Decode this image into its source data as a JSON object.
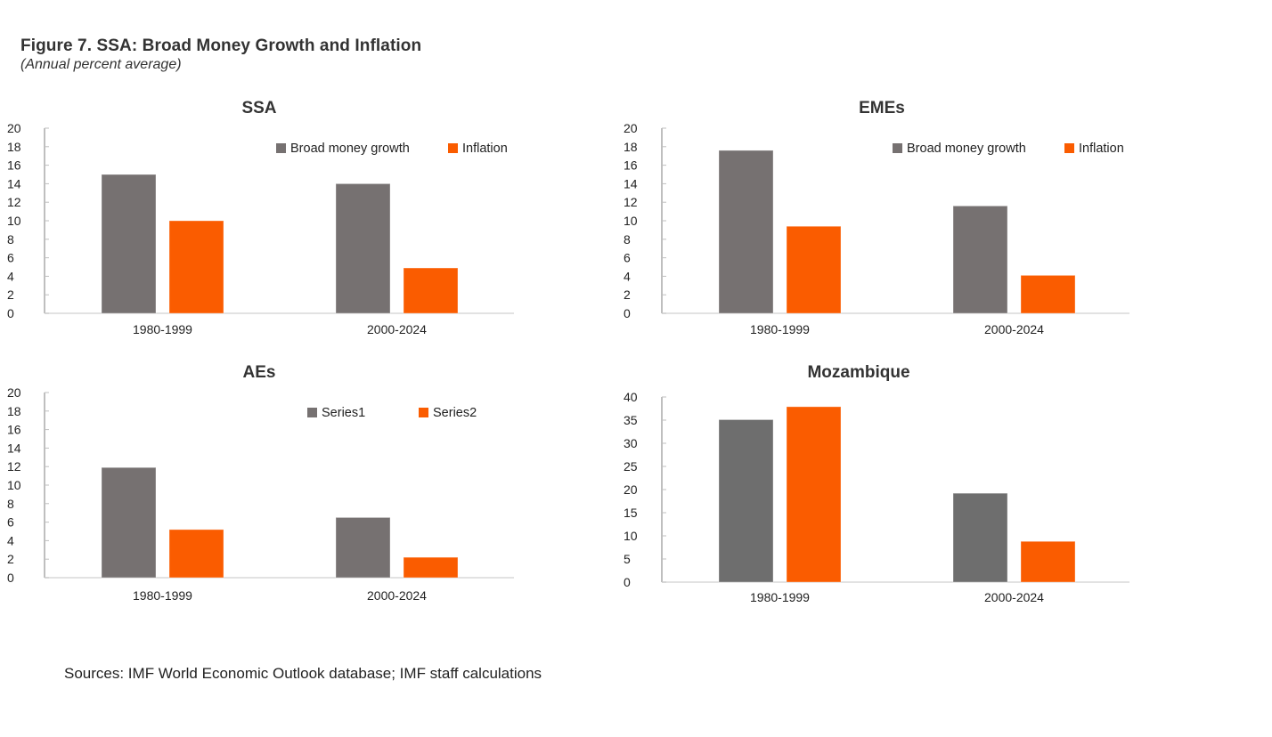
{
  "figure": {
    "title": "Figure 7. SSA: Broad Money Growth and Inflation",
    "subtitle": "(Annual percent average)",
    "sources": "Sources: IMF World Economic Outlook database; IMF staff calculations"
  },
  "colors": {
    "gray": "#767171",
    "gray_alt": "#6E6E6E",
    "orange": "#FA5C00",
    "axis": "#BFBFBF"
  },
  "chart_data": [
    {
      "id": "ssa",
      "type": "bar",
      "title": "SSA",
      "categories": [
        "1980-1999",
        "2000-2024"
      ],
      "series": [
        {
          "name": "Broad money growth",
          "color": "#767171",
          "values": [
            15.0,
            14.0
          ]
        },
        {
          "name": "Inflation",
          "color": "#FA5C00",
          "values": [
            10.0,
            4.9
          ]
        }
      ],
      "ylim": [
        0,
        20
      ],
      "yticks": [
        0,
        2,
        4,
        6,
        8,
        10,
        12,
        14,
        16,
        18,
        20
      ],
      "xlabel": "",
      "ylabel": "",
      "grid": false,
      "legend": "top-right"
    },
    {
      "id": "emes",
      "type": "bar",
      "title": "EMEs",
      "categories": [
        "1980-1999",
        "2000-2024"
      ],
      "series": [
        {
          "name": "Broad money growth",
          "color": "#767171",
          "values": [
            17.6,
            11.6
          ]
        },
        {
          "name": "Inflation",
          "color": "#FA5C00",
          "values": [
            9.4,
            4.1
          ]
        }
      ],
      "ylim": [
        0,
        20
      ],
      "yticks": [
        0,
        2,
        4,
        6,
        8,
        10,
        12,
        14,
        16,
        18,
        20
      ],
      "xlabel": "",
      "ylabel": "",
      "grid": false,
      "legend": "top-right"
    },
    {
      "id": "aes",
      "type": "bar",
      "title": "AEs",
      "categories": [
        "1980-1999",
        "2000-2024"
      ],
      "series": [
        {
          "name": "Series1",
          "color": "#767171",
          "values": [
            11.9,
            6.5
          ]
        },
        {
          "name": "Series2",
          "color": "#FA5C00",
          "values": [
            5.2,
            2.2
          ]
        }
      ],
      "ylim": [
        0,
        20
      ],
      "yticks": [
        0,
        2,
        4,
        6,
        8,
        10,
        12,
        14,
        16,
        18,
        20
      ],
      "xlabel": "",
      "ylabel": "",
      "grid": false,
      "legend": "top-right"
    },
    {
      "id": "mozambique",
      "type": "bar",
      "title": "Mozambique",
      "categories": [
        "1980-1999",
        "2000-2024"
      ],
      "series": [
        {
          "name": "Broad money growth",
          "color": "#6E6E6E",
          "values": [
            35.1,
            19.2
          ]
        },
        {
          "name": "Inflation",
          "color": "#FA5C00",
          "values": [
            37.9,
            8.8
          ]
        }
      ],
      "ylim": [
        0,
        40
      ],
      "yticks": [
        0,
        5,
        10,
        15,
        20,
        25,
        30,
        35,
        40
      ],
      "xlabel": "",
      "ylabel": "",
      "grid": false,
      "legend": "none"
    }
  ]
}
